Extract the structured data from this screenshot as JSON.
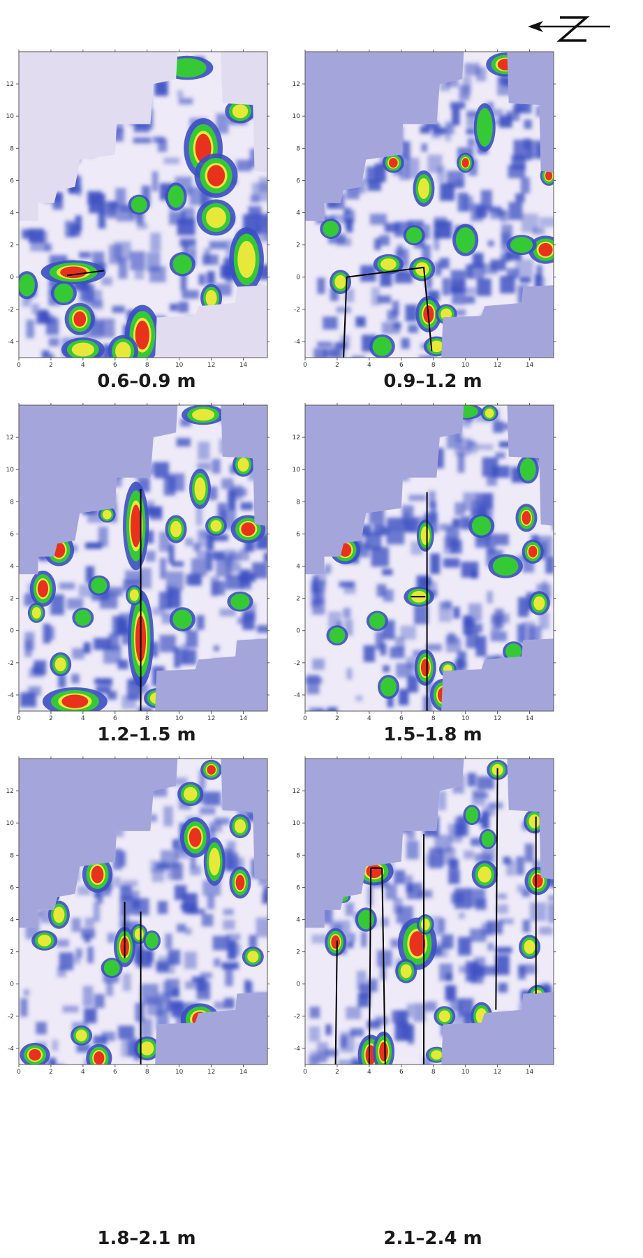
{
  "north_arrow": {
    "letter": "N"
  },
  "chart_data": {
    "type": "heatmap",
    "x_ticks": [
      0,
      2,
      4,
      6,
      8,
      10,
      12,
      14
    ],
    "y_ticks": [
      12,
      10,
      8,
      6,
      4,
      2,
      0,
      -2,
      -4
    ],
    "xlim": [
      0,
      15.5
    ],
    "ylim": [
      -5,
      14
    ],
    "colors": {
      "blue": "#3b4fc2",
      "green": "#35c935",
      "yellow": "#e8e83a",
      "red": "#e8321e",
      "light": "#eeeaf7",
      "lavender_panel1": "#e2dcf0",
      "lavender": "#a4a6db"
    },
    "panels": [
      {
        "label": "0.6–0.9 m",
        "lines": [
          [
            [
              3.0,
              0.1
            ],
            [
              5.3,
              0.4
            ]
          ]
        ],
        "anomalies": [
          [
            11.5,
            8.0,
            0.9,
            1.5,
            3
          ],
          [
            12.3,
            6.3,
            1.0,
            1.1,
            3
          ],
          [
            7.7,
            -3.6,
            0.8,
            1.5,
            3
          ],
          [
            3.4,
            0.3,
            1.5,
            0.6,
            3
          ],
          [
            3.8,
            -2.6,
            0.7,
            0.8,
            3
          ],
          [
            12.3,
            3.7,
            0.9,
            0.9,
            2
          ],
          [
            14.2,
            1.1,
            0.8,
            1.6,
            2
          ],
          [
            13.8,
            10.3,
            0.7,
            0.6,
            2
          ],
          [
            10.5,
            13.0,
            1.2,
            0.6,
            1
          ],
          [
            4.0,
            -4.5,
            1.0,
            0.6,
            2
          ],
          [
            6.5,
            -4.6,
            0.7,
            0.8,
            2
          ],
          [
            12.0,
            -1.3,
            0.5,
            0.7,
            2
          ],
          [
            9.8,
            5.0,
            0.5,
            0.7,
            1
          ],
          [
            7.5,
            4.5,
            0.5,
            0.5,
            1
          ],
          [
            0.5,
            -0.5,
            0.5,
            0.7,
            1
          ],
          [
            2.8,
            -1.0,
            0.6,
            0.6,
            1
          ],
          [
            10.2,
            0.8,
            0.6,
            0.6,
            1
          ]
        ]
      },
      {
        "label": "0.9–1.2 m",
        "lines": [
          [
            [
              2.4,
              -5.0
            ],
            [
              2.6,
              0.0
            ],
            [
              7.4,
              0.6
            ],
            [
              7.9,
              -4.6
            ]
          ]
        ],
        "anomalies": [
          [
            12.5,
            13.2,
            0.9,
            0.6,
            3
          ],
          [
            5.5,
            7.1,
            0.5,
            0.5,
            3
          ],
          [
            10.0,
            7.1,
            0.4,
            0.5,
            3
          ],
          [
            7.4,
            5.5,
            0.5,
            0.9,
            2
          ],
          [
            15.0,
            1.7,
            0.8,
            0.7,
            3
          ],
          [
            15.2,
            6.3,
            0.4,
            0.5,
            3
          ],
          [
            5.2,
            0.8,
            0.7,
            0.5,
            2
          ],
          [
            7.3,
            0.5,
            0.6,
            0.6,
            2
          ],
          [
            2.2,
            -0.3,
            0.5,
            0.6,
            2
          ],
          [
            7.7,
            -2.3,
            0.6,
            0.9,
            3
          ],
          [
            8.2,
            -4.3,
            0.6,
            0.5,
            2
          ],
          [
            8.8,
            -2.3,
            0.5,
            0.5,
            2
          ],
          [
            11.2,
            9.3,
            0.5,
            1.2,
            1
          ],
          [
            6.8,
            2.6,
            0.5,
            0.5,
            1
          ],
          [
            1.6,
            3.0,
            0.5,
            0.5,
            1
          ],
          [
            10.0,
            2.3,
            0.6,
            0.8,
            1
          ],
          [
            13.5,
            2.0,
            0.7,
            0.5,
            1
          ],
          [
            4.8,
            -4.3,
            0.6,
            0.6,
            1
          ]
        ]
      },
      {
        "label": "1.2–1.5 m",
        "lines": [
          [
            [
              7.6,
              -5.0
            ],
            [
              7.6,
              8.8
            ]
          ]
        ],
        "anomalies": [
          [
            7.3,
            6.5,
            0.6,
            2.2,
            3
          ],
          [
            7.6,
            -0.5,
            0.6,
            2.4,
            3
          ],
          [
            7.2,
            2.2,
            0.4,
            0.5,
            2
          ],
          [
            2.5,
            5.0,
            0.7,
            0.8,
            3
          ],
          [
            1.5,
            2.6,
            0.6,
            0.9,
            3
          ],
          [
            3.5,
            -4.4,
            1.5,
            0.7,
            3
          ],
          [
            8.6,
            -4.2,
            0.6,
            0.5,
            2
          ],
          [
            14.3,
            6.3,
            0.8,
            0.7,
            3
          ],
          [
            11.3,
            8.8,
            0.5,
            1.0,
            2
          ],
          [
            14.0,
            10.3,
            0.5,
            0.6,
            2
          ],
          [
            11.5,
            13.4,
            1.0,
            0.5,
            2
          ],
          [
            9.8,
            6.3,
            0.5,
            0.7,
            2
          ],
          [
            12.3,
            6.5,
            0.5,
            0.5,
            2
          ],
          [
            5.5,
            7.2,
            0.4,
            0.4,
            2
          ],
          [
            1.1,
            1.1,
            0.4,
            0.5,
            2
          ],
          [
            2.6,
            -2.1,
            0.5,
            0.6,
            2
          ],
          [
            13.8,
            1.8,
            0.6,
            0.5,
            1
          ],
          [
            5.0,
            2.8,
            0.5,
            0.5,
            1
          ],
          [
            10.2,
            0.7,
            0.6,
            0.6,
            1
          ],
          [
            4.0,
            0.8,
            0.5,
            0.5,
            1
          ]
        ]
      },
      {
        "label": "1.5–1.8 m",
        "lines": [
          [
            [
              7.6,
              -5.0
            ],
            [
              7.6,
              8.6
            ]
          ],
          [
            [
              6.6,
              2.1
            ],
            [
              7.5,
              2.1
            ]
          ]
        ],
        "anomalies": [
          [
            2.5,
            5.0,
            0.7,
            0.7,
            3
          ],
          [
            8.6,
            -4.0,
            0.6,
            0.8,
            3
          ],
          [
            14.2,
            4.9,
            0.5,
            0.6,
            3
          ],
          [
            13.8,
            7.0,
            0.5,
            0.7,
            3
          ],
          [
            14.6,
            1.7,
            0.5,
            0.6,
            2
          ],
          [
            7.5,
            5.9,
            0.4,
            0.8,
            2
          ],
          [
            7.5,
            -2.3,
            0.5,
            0.9,
            3
          ],
          [
            7.1,
            2.1,
            0.7,
            0.5,
            2
          ],
          [
            8.9,
            -2.4,
            0.4,
            0.4,
            2
          ],
          [
            11.5,
            13.5,
            0.4,
            0.4,
            2
          ],
          [
            10.0,
            13.6,
            0.8,
            0.4,
            1
          ],
          [
            11.0,
            6.5,
            0.6,
            0.6,
            1
          ],
          [
            13.9,
            10.0,
            0.5,
            0.7,
            1
          ],
          [
            5.2,
            -3.5,
            0.5,
            0.6,
            1
          ],
          [
            13.0,
            -1.3,
            0.5,
            0.5,
            1
          ],
          [
            2.0,
            -0.3,
            0.5,
            0.5,
            1
          ],
          [
            4.5,
            0.6,
            0.5,
            0.5,
            1
          ],
          [
            12.5,
            4.0,
            0.8,
            0.6,
            1
          ]
        ]
      },
      {
        "label": "1.8–2.1 m",
        "lines": [
          [
            [
              6.6,
              1.6
            ],
            [
              6.6,
              5.1
            ]
          ],
          [
            [
              7.6,
              -5.0
            ],
            [
              7.6,
              4.5
            ]
          ]
        ],
        "anomalies": [
          [
            4.9,
            6.8,
            0.7,
            0.9,
            3
          ],
          [
            2.5,
            4.3,
            0.5,
            0.7,
            2
          ],
          [
            1.6,
            2.7,
            0.6,
            0.5,
            2
          ],
          [
            6.6,
            2.3,
            0.5,
            1.0,
            3
          ],
          [
            7.5,
            3.1,
            0.4,
            0.5,
            2
          ],
          [
            11.3,
            -2.2,
            0.9,
            0.8,
            3
          ],
          [
            11.0,
            9.1,
            0.7,
            1.0,
            3
          ],
          [
            12.2,
            7.6,
            0.5,
            1.2,
            2
          ],
          [
            13.8,
            6.3,
            0.5,
            0.8,
            3
          ],
          [
            13.8,
            9.8,
            0.5,
            0.6,
            2
          ],
          [
            12.0,
            13.3,
            0.5,
            0.5,
            3
          ],
          [
            10.7,
            11.8,
            0.6,
            0.6,
            2
          ],
          [
            14.6,
            1.7,
            0.5,
            0.5,
            2
          ],
          [
            5.0,
            -4.6,
            0.6,
            0.7,
            3
          ],
          [
            1.0,
            -4.4,
            0.7,
            0.6,
            3
          ],
          [
            8.0,
            -4.0,
            0.6,
            0.6,
            2
          ],
          [
            3.9,
            -3.2,
            0.5,
            0.5,
            2
          ],
          [
            2.0,
            5.4,
            0.4,
            0.3,
            1
          ],
          [
            8.3,
            2.7,
            0.4,
            0.5,
            1
          ],
          [
            5.8,
            1.0,
            0.5,
            0.5,
            1
          ]
        ]
      },
      {
        "label": "2.1–2.4 m",
        "lines": [
          [
            [
              1.9,
              -5.0
            ],
            [
              2.0,
              2.7
            ]
          ],
          [
            [
              4.0,
              -5.0
            ],
            [
              4.1,
              7.2
            ]
          ],
          [
            [
              4.1,
              7.2
            ],
            [
              4.8,
              7.2
            ]
          ],
          [
            [
              4.8,
              7.2
            ],
            [
              5.0,
              -5.0
            ]
          ],
          [
            [
              7.4,
              -5.0
            ],
            [
              7.4,
              9.3
            ]
          ],
          [
            [
              11.9,
              -1.6
            ],
            [
              12.0,
              13.4
            ]
          ],
          [
            [
              14.4,
              -0.6
            ],
            [
              14.4,
              10.4
            ]
          ]
        ],
        "anomalies": [
          [
            1.9,
            2.6,
            0.5,
            0.7,
            3
          ],
          [
            4.3,
            7.0,
            0.9,
            0.7,
            3
          ],
          [
            4.1,
            -4.4,
            0.6,
            1.0,
            3
          ],
          [
            4.9,
            -4.2,
            0.5,
            1.0,
            3
          ],
          [
            7.0,
            2.5,
            0.9,
            1.3,
            3
          ],
          [
            7.5,
            3.7,
            0.4,
            0.5,
            2
          ],
          [
            14.5,
            6.4,
            0.6,
            0.7,
            3
          ],
          [
            14.3,
            10.1,
            0.5,
            0.6,
            2
          ],
          [
            12.0,
            13.3,
            0.5,
            0.5,
            2
          ],
          [
            11.2,
            6.8,
            0.6,
            0.7,
            2
          ],
          [
            11.0,
            -2.0,
            0.5,
            0.7,
            2
          ],
          [
            8.7,
            -2.0,
            0.5,
            0.5,
            2
          ],
          [
            14.5,
            -0.8,
            0.5,
            0.6,
            2
          ],
          [
            14.0,
            2.3,
            0.5,
            0.6,
            2
          ],
          [
            8.2,
            -4.4,
            0.5,
            0.4,
            2
          ],
          [
            6.3,
            0.8,
            0.5,
            0.6,
            2
          ],
          [
            3.8,
            4.0,
            0.5,
            0.6,
            1
          ],
          [
            2.3,
            5.4,
            0.4,
            0.3,
            1
          ],
          [
            10.4,
            10.5,
            0.4,
            0.5,
            1
          ],
          [
            11.4,
            9.0,
            0.4,
            0.5,
            1
          ]
        ]
      }
    ]
  }
}
